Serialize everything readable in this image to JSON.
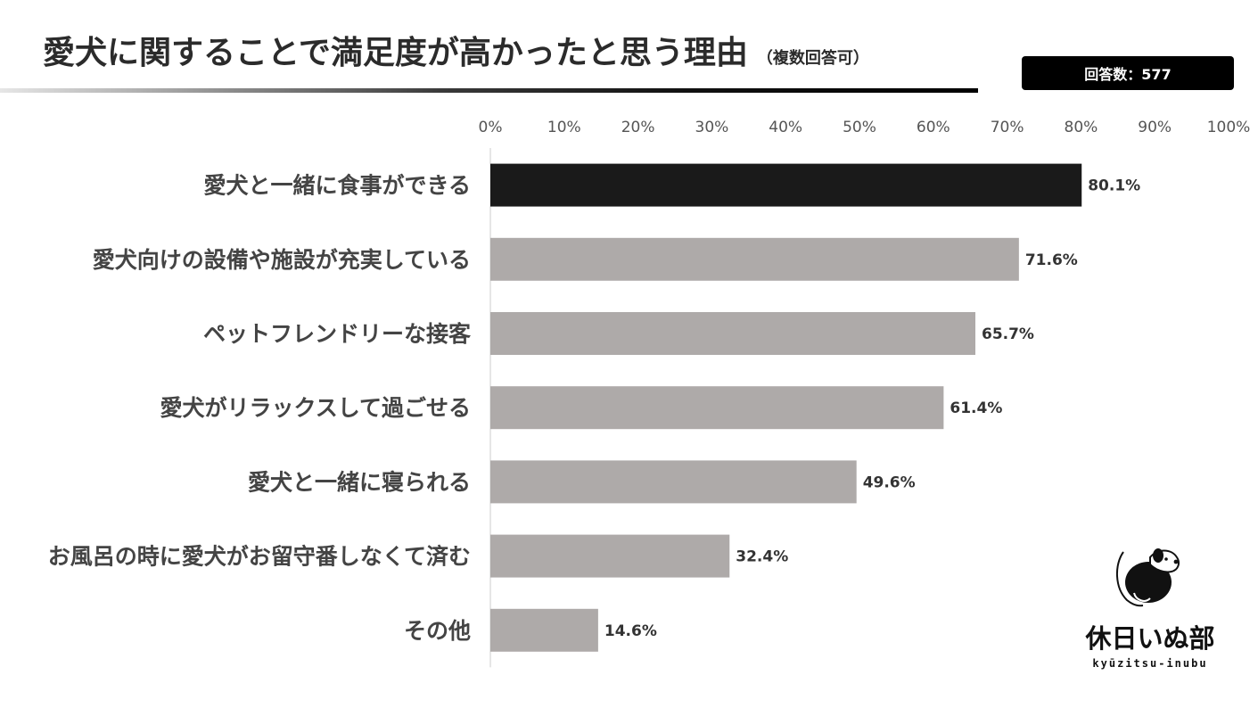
{
  "title": "愛犬に関することで満足度が高かったと思う理由",
  "title_note": "（複数回答可）",
  "response_count": "回答数：577",
  "logo": {
    "name": "休日いぬ部",
    "romanized": "kyūzitsu-inubu"
  },
  "colors": {
    "highlight_bar": "#1a1a1a",
    "bar": "#aeaaa9",
    "axis_line": "#cccccc"
  },
  "chart_data": {
    "type": "bar",
    "orientation": "horizontal",
    "categories": [
      "愛犬と一緒に食事ができる",
      "愛犬向けの設備や施設が充実している",
      "ペットフレンドリーな接客",
      "愛犬がリラックスして過ごせる",
      "愛犬と一緒に寝られる",
      "お風呂の時に愛犬がお留守番しなくて済む",
      "その他"
    ],
    "values": [
      80.1,
      71.6,
      65.7,
      61.4,
      49.6,
      32.4,
      14.6
    ],
    "value_labels": [
      "80.1%",
      "71.6%",
      "65.7%",
      "61.4%",
      "49.6%",
      "32.4%",
      "14.6%"
    ],
    "highlighted_index": 0,
    "xlim": [
      0,
      100
    ],
    "x_ticks": [
      0,
      10,
      20,
      30,
      40,
      50,
      60,
      70,
      80,
      90,
      100
    ],
    "x_tick_labels": [
      "0%",
      "10%",
      "20%",
      "30%",
      "40%",
      "50%",
      "60%",
      "70%",
      "80%",
      "90%",
      "100%"
    ],
    "axis_position": "top",
    "grid": false,
    "legend": "none"
  }
}
